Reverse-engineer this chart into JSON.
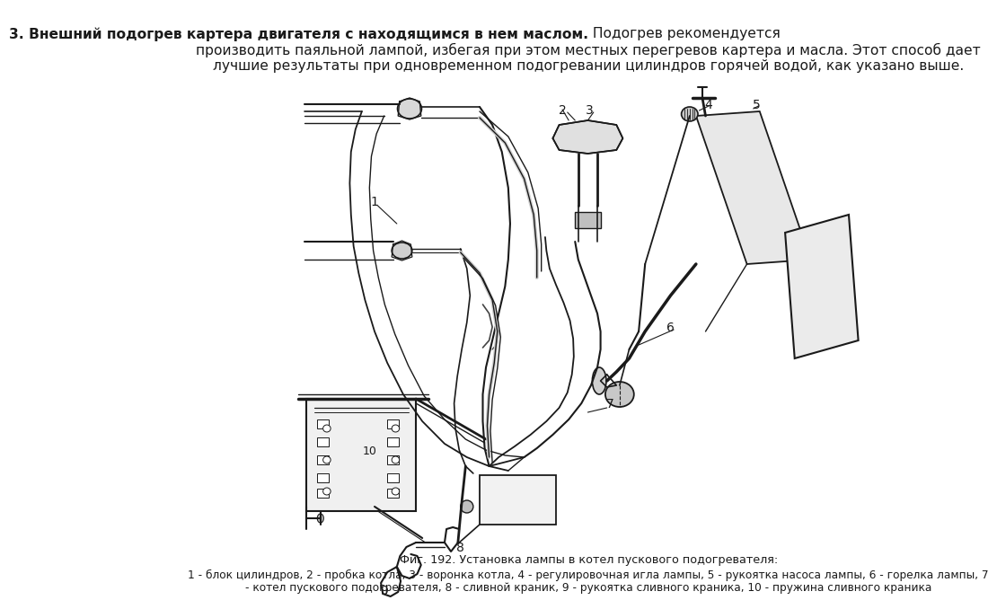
{
  "background_color": "#ffffff",
  "text_color": "#1a1a1a",
  "font_size_body": 11.2,
  "font_size_caption": 9.2,
  "line1_bold": "3. Внешний подогрев картера двигателя с находящимся в нем маслом.",
  "line1_normal": " Подогрев рекомендуется",
  "line2": "производить паяльной лампой, избегая при этом местных перегревов картера и масла. Этот способ дает",
  "line3": "лучшие результаты при одновременном подогревании цилиндров горячей водой, как указано выше.",
  "caption_line1": "Фиг. 192. Установка лампы в котел пускового подогревателя:",
  "caption_line2": "1 - блок цилиндров, 2 - пробка котла, 3 - воронка котла, 4 - регулировочная игла лампы, 5 - рукоятка насоса лампы, 6 - горелка лампы, 7",
  "caption_line3": "- котел пускового подогревателя, 8 - сливной краник, 9 - рукоятка сливного краника, 10 - пружина сливного краника"
}
